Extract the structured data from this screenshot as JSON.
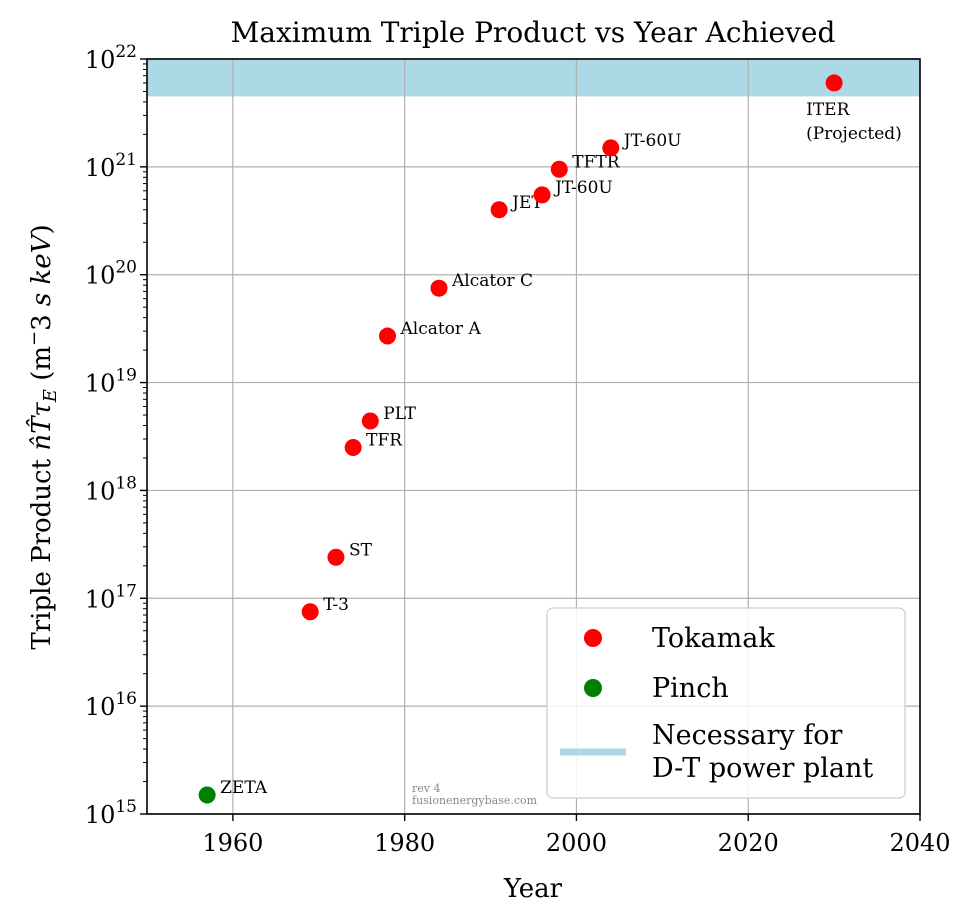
{
  "chart_data": {
    "type": "scatter",
    "title": "Maximum Triple Product vs Year Achieved",
    "xlabel": "Year",
    "ylabel": "Triple Product n̂T̂τE (m−3 s keV)",
    "xlim": [
      1950,
      2040
    ],
    "ylim": [
      1000000000000000.0,
      1e+22
    ],
    "yscale": "log",
    "grid": true,
    "legend_position": "bottom-right",
    "x_ticks": [
      "1960",
      "1980",
      "2000",
      "2020",
      "2040"
    ],
    "y_ticks": [
      {
        "base": "10",
        "exp": "15"
      },
      {
        "base": "10",
        "exp": "16"
      },
      {
        "base": "10",
        "exp": "17"
      },
      {
        "base": "10",
        "exp": "18"
      },
      {
        "base": "10",
        "exp": "19"
      },
      {
        "base": "10",
        "exp": "20"
      },
      {
        "base": "10",
        "exp": "21"
      },
      {
        "base": "10",
        "exp": "22"
      }
    ],
    "band": {
      "name": "Necessary for D-T power plant",
      "ymin": 4.5e+21,
      "ymax": 1e+22,
      "color": "#add8e6"
    },
    "series": [
      {
        "name": "Tokamak",
        "color": "#ff0000",
        "points": [
          {
            "x": 1969,
            "y": 7.5e+16,
            "label": "T-3"
          },
          {
            "x": 1972,
            "y": 2.4e+17,
            "label": "ST"
          },
          {
            "x": 1974,
            "y": 2.5e+18,
            "label": "TFR"
          },
          {
            "x": 1976,
            "y": 4.4e+18,
            "label": "PLT"
          },
          {
            "x": 1978,
            "y": 2.7e+19,
            "label": "Alcator A"
          },
          {
            "x": 1984,
            "y": 7.5e+19,
            "label": "Alcator C"
          },
          {
            "x": 1991,
            "y": 4e+20,
            "label": "JET"
          },
          {
            "x": 1996,
            "y": 5.5e+20,
            "label": "JT-60U"
          },
          {
            "x": 1998,
            "y": 9.5e+20,
            "label": "TFTR"
          },
          {
            "x": 2004,
            "y": 1.5e+21,
            "label": "JT-60U"
          },
          {
            "x": 2030,
            "y": 6e+21,
            "label": "ITER\n(Projected)",
            "label_below": true
          }
        ]
      },
      {
        "name": "Pinch",
        "color": "#008000",
        "points": [
          {
            "x": 1957,
            "y": 1500000000000000.0,
            "label": "ZETA"
          }
        ]
      }
    ],
    "legend": [
      {
        "label": "Tokamak",
        "marker": "dot",
        "color": "#ff0000"
      },
      {
        "label": "Pinch",
        "marker": "dot",
        "color": "#008000"
      },
      {
        "label": "Necessary for\nD-T power plant",
        "marker": "line",
        "color": "#add8e6"
      }
    ],
    "annotations": [
      "rev 4",
      "fusionenergybase.com"
    ]
  }
}
